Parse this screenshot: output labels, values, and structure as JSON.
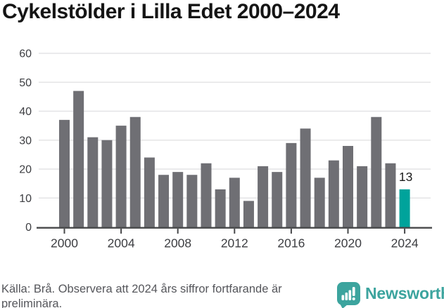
{
  "title": "Cykelstölder i Lilla Edet 2000–2024",
  "chart_data": {
    "type": "bar",
    "title": "Cykelstölder i Lilla Edet 2000–2024",
    "x": [
      2000,
      2001,
      2002,
      2003,
      2004,
      2005,
      2006,
      2007,
      2008,
      2009,
      2010,
      2011,
      2012,
      2013,
      2014,
      2015,
      2016,
      2017,
      2018,
      2019,
      2020,
      2021,
      2022,
      2023,
      2024
    ],
    "values": [
      37,
      47,
      31,
      30,
      35,
      38,
      24,
      18,
      19,
      18,
      22,
      13,
      17,
      9,
      21,
      19,
      29,
      34,
      17,
      23,
      28,
      21,
      38,
      22,
      13
    ],
    "xlabel": "",
    "ylabel": "",
    "ylim": [
      0,
      60
    ],
    "yticks": [
      0,
      10,
      20,
      30,
      40,
      50,
      60
    ],
    "xticks": [
      2000,
      2004,
      2008,
      2012,
      2016,
      2020,
      2024
    ],
    "grid": "horizontal",
    "legend": "none",
    "highlight_year": 2024,
    "highlight_label": "13",
    "colors": {
      "bar": "#6f6f74",
      "highlight": "#00a39b",
      "gridline": "#e4e4e6",
      "axis": "#47484a",
      "tick_label": "#3d3e42",
      "value_label": "#1b1b1b"
    }
  },
  "footer": {
    "source_text": "Källa: Brå. Observera att 2024 års siffror fortfarande är preliminära.",
    "brand_name": "Newsworthy",
    "brand_color": "#3ca49e"
  }
}
